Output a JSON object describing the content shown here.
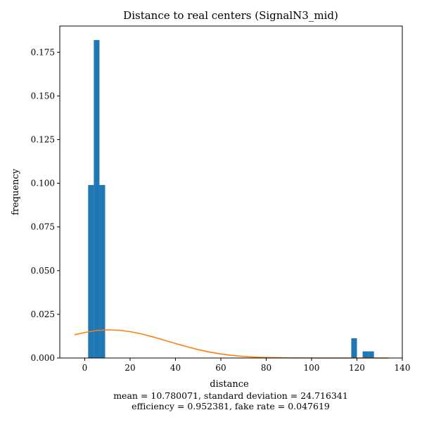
{
  "chart_data": {
    "type": "bar",
    "title": "Distance to real centers (SignalN3_mid)",
    "xlabel": "distance",
    "ylabel": "frequency",
    "xlim": [
      -11,
      140
    ],
    "ylim": [
      0,
      0.19
    ],
    "xticks": [
      0,
      20,
      40,
      60,
      80,
      100,
      120,
      140
    ],
    "yticks": [
      0.0,
      0.025,
      0.05,
      0.075,
      0.1,
      0.125,
      0.15,
      0.175
    ],
    "xtick_labels": [
      "0",
      "20",
      "40",
      "60",
      "80",
      "100",
      "120",
      "140"
    ],
    "ytick_labels": [
      "0.000",
      "0.025",
      "0.050",
      "0.075",
      "0.100",
      "0.125",
      "0.150",
      "0.175"
    ],
    "grid": false,
    "histogram_bins": [
      {
        "x0": 1.5,
        "x1": 4.0,
        "value": 0.099
      },
      {
        "x0": 4.0,
        "x1": 6.5,
        "value": 0.182
      },
      {
        "x0": 6.5,
        "x1": 9.0,
        "value": 0.099
      },
      {
        "x0": 117.5,
        "x1": 120.0,
        "value": 0.0113
      },
      {
        "x0": 122.5,
        "x1": 125.0,
        "value": 0.0038
      },
      {
        "x0": 125.0,
        "x1": 127.5,
        "value": 0.0038
      }
    ],
    "series": [
      {
        "type": "line",
        "x": [
          -4.5,
          0,
          5,
          10,
          15,
          20,
          25,
          30,
          35,
          40,
          45,
          50,
          55,
          60,
          65,
          70,
          75,
          80,
          90,
          100,
          110,
          120,
          134
        ],
        "values": [
          0.0133,
          0.0146,
          0.0157,
          0.0161,
          0.0159,
          0.0151,
          0.0138,
          0.0121,
          0.0102,
          0.0083,
          0.0065,
          0.0048,
          0.0034,
          0.0023,
          0.0015,
          0.0009,
          0.0005,
          0.0003,
          0.0001,
          0.0,
          0.0,
          0.0,
          0.0
        ]
      }
    ],
    "bar_color": "#1f77b4",
    "line_color": "#ff7f0e",
    "footer_lines": [
      "mean = 10.780071, standard deviation = 24.716341",
      "efficiency = 0.952381, fake rate = 0.047619"
    ]
  }
}
